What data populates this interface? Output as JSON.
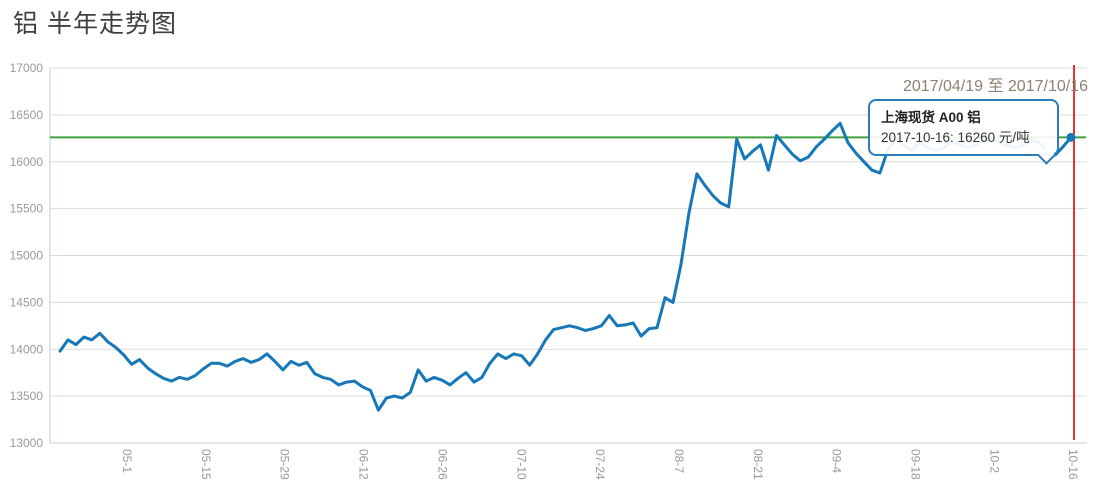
{
  "page": {
    "title": "铝 半年走势图"
  },
  "header": {
    "date_range": "2017/04/19 至 2017/10/16"
  },
  "tooltip": {
    "series_name": "上海现货 A00 铝",
    "value_line": "2017-10-16: 16260 元/吨"
  },
  "colors": {
    "price_line": "#1678b8",
    "current_price_line": "#3fa13f",
    "current_date_line": "#e10000",
    "grid": "#dcdcdc",
    "axis": "#c5cede",
    "tick_label": "#999999",
    "title_text": "#3f3f3f",
    "date_range_text": "#8b8272",
    "tooltip_border": "#2b7cb9"
  },
  "chart_data": {
    "type": "line",
    "title": "铝 半年走势图",
    "xlabel": "",
    "ylabel": "",
    "date_start": "2017/04/19",
    "date_end": "2017/10/16",
    "ylim": [
      13000,
      17000
    ],
    "y_ticks": [
      13000,
      13500,
      14000,
      14500,
      15000,
      15500,
      16000,
      16500,
      17000
    ],
    "x_tick_labels": [
      "05-1",
      "05-15",
      "05-29",
      "06-12",
      "06-26",
      "07-10",
      "07-24",
      "08-7",
      "08-21",
      "09-4",
      "09-18",
      "10-2",
      "10-16"
    ],
    "x_label_rotation": 90,
    "grid": true,
    "legend_position": "none",
    "reference_lines": {
      "current_price": 16260,
      "current_date_label": "10-16"
    },
    "last_point": {
      "date": "2017-10-16",
      "value": 16260,
      "unit": "元/吨"
    },
    "series": [
      {
        "name": "上海现货 A00 铝",
        "values": [
          13980,
          14100,
          14050,
          14130,
          14100,
          14170,
          14080,
          14020,
          13940,
          13840,
          13890,
          13800,
          13740,
          13690,
          13660,
          13700,
          13680,
          13720,
          13790,
          13850,
          13850,
          13820,
          13870,
          13900,
          13860,
          13890,
          13950,
          13870,
          13780,
          13870,
          13830,
          13860,
          13740,
          13700,
          13680,
          13620,
          13650,
          13660,
          13600,
          13560,
          13350,
          13480,
          13500,
          13480,
          13540,
          13780,
          13660,
          13700,
          13670,
          13620,
          13690,
          13750,
          13650,
          13700,
          13850,
          13950,
          13900,
          13950,
          13930,
          13830,
          13950,
          14100,
          14210,
          14230,
          14250,
          14230,
          14200,
          14220,
          14250,
          14360,
          14250,
          14260,
          14280,
          14140,
          14220,
          14230,
          14550,
          14500,
          14900,
          15450,
          15870,
          15750,
          15640,
          15560,
          15520,
          16240,
          16030,
          16110,
          16180,
          15910,
          16280,
          16180,
          16080,
          16010,
          16050,
          16160,
          16240,
          16330,
          16410,
          16200,
          16090,
          16000,
          15910,
          15880,
          16130,
          16240,
          16180,
          16120,
          16200,
          16150,
          16120,
          16150,
          16210,
          16190,
          16150,
          16180,
          16230,
          16240,
          16200,
          16180,
          16150,
          16180,
          16230,
          16200,
          16120,
          16070,
          16160,
          16260
        ]
      }
    ]
  }
}
